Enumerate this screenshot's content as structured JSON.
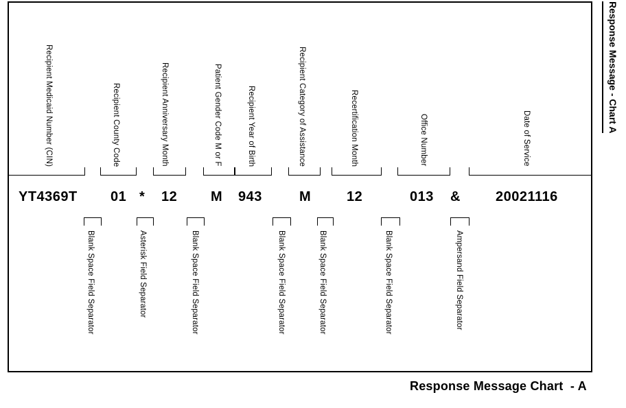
{
  "page_header_vertical": "Response Message - Chart A",
  "caption": "Response Message Chart  - A",
  "colors": {
    "ink": "#000000",
    "paper": "#ffffff"
  },
  "record": {
    "fields": [
      {
        "label": "Recipient Medicaid Number (CIN)",
        "value": "YT4369T"
      },
      {
        "label": "Recipient County Code",
        "value": "01"
      },
      {
        "label": "Recipient Anniversary Month",
        "value": "12"
      },
      {
        "label": "Patient Gender Code M or F",
        "value": "M"
      },
      {
        "label": "Recipient Year of Birth",
        "value": "943"
      },
      {
        "label": "Recipient Category of Assistance",
        "value": "M"
      },
      {
        "label": "Recertification Month",
        "value": "12"
      },
      {
        "label": "Office Number",
        "value": "013"
      },
      {
        "label": "Date of Service",
        "value": "20021116"
      }
    ],
    "separators": [
      {
        "label": "Blank Space Field Separator",
        "symbol": ""
      },
      {
        "label": "Asterisk Field Separator",
        "symbol": "*"
      },
      {
        "label": "Blank Space Field Separator",
        "symbol": ""
      },
      {
        "label": "Blank Space Field Separator",
        "symbol": ""
      },
      {
        "label": "Blank Space Field Separator",
        "symbol": ""
      },
      {
        "label": "Blank Space Field Separator",
        "symbol": ""
      },
      {
        "label": "Ampersand Field Separator",
        "symbol": "&"
      }
    ]
  }
}
